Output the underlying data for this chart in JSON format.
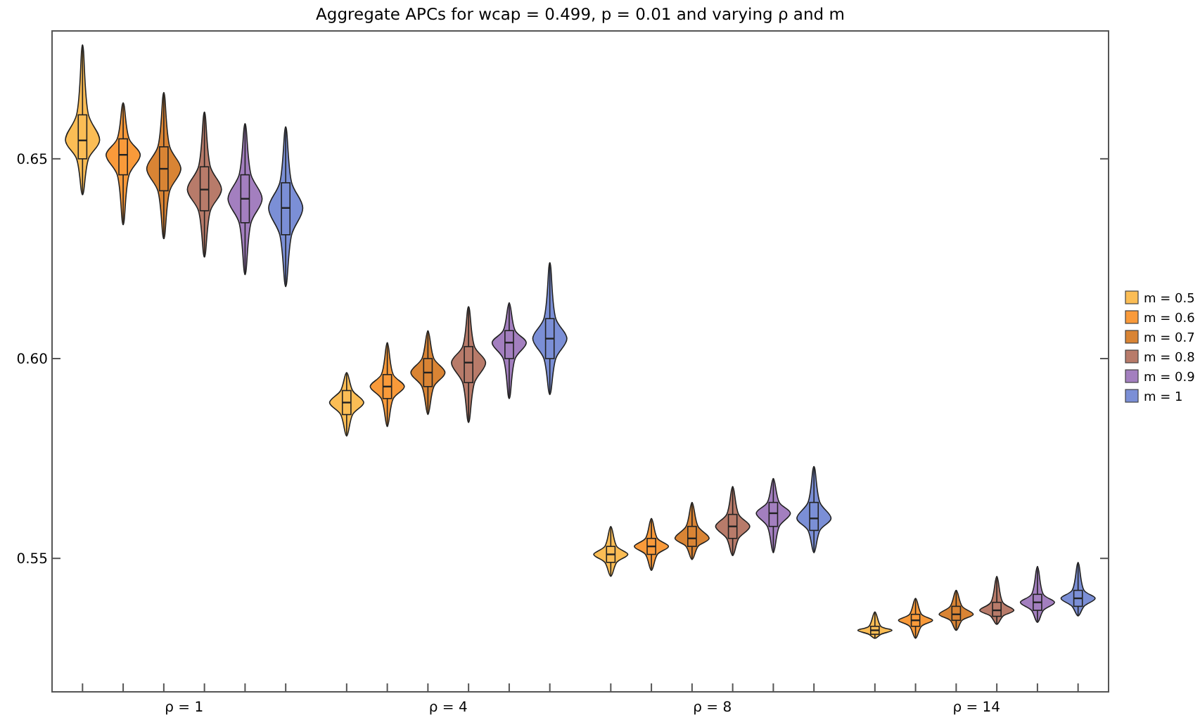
{
  "chart_data": {
    "type": "box",
    "title": "Aggregate APCs for wcap = 0.499, p = 0.01 and varying ρ and m",
    "categories": [
      "ρ = 1",
      "ρ = 4",
      "ρ = 8",
      "ρ = 14"
    ],
    "ylim": [
      0.5166,
      0.682
    ],
    "yticks": [
      {
        "value": 0.55,
        "label": "0.55"
      },
      {
        "value": 0.6,
        "label": "0.60"
      },
      {
        "value": 0.65,
        "label": "0.65"
      }
    ],
    "legend": "right",
    "grid": false,
    "series": [
      {
        "name": "m = 0.5",
        "color": "#fbbd55",
        "boxes": [
          {
            "low": 0.641,
            "q1": 0.65,
            "median": 0.6546,
            "q3": 0.661,
            "high": 0.6785
          },
          {
            "low": 0.5806,
            "q1": 0.586,
            "median": 0.589,
            "q3": 0.592,
            "high": 0.5965
          },
          {
            "low": 0.5455,
            "q1": 0.549,
            "median": 0.551,
            "q3": 0.553,
            "high": 0.558
          },
          {
            "low": 0.53,
            "q1": 0.531,
            "median": 0.532,
            "q3": 0.533,
            "high": 0.5366
          }
        ]
      },
      {
        "name": "m = 0.6",
        "color": "#f99a3a",
        "boxes": [
          {
            "low": 0.6335,
            "q1": 0.646,
            "median": 0.651,
            "q3": 0.655,
            "high": 0.664
          },
          {
            "low": 0.583,
            "q1": 0.59,
            "median": 0.593,
            "q3": 0.596,
            "high": 0.604
          },
          {
            "low": 0.547,
            "q1": 0.551,
            "median": 0.553,
            "q3": 0.555,
            "high": 0.56
          },
          {
            "low": 0.53,
            "q1": 0.533,
            "median": 0.5345,
            "q3": 0.536,
            "high": 0.54
          }
        ]
      },
      {
        "name": "m = 0.7",
        "color": "#d98434",
        "boxes": [
          {
            "low": 0.63,
            "q1": 0.642,
            "median": 0.6475,
            "q3": 0.653,
            "high": 0.6666
          },
          {
            "low": 0.586,
            "q1": 0.593,
            "median": 0.5965,
            "q3": 0.6,
            "high": 0.607
          },
          {
            "low": 0.5497,
            "q1": 0.553,
            "median": 0.555,
            "q3": 0.558,
            "high": 0.564
          },
          {
            "low": 0.532,
            "q1": 0.5345,
            "median": 0.536,
            "q3": 0.538,
            "high": 0.542
          }
        ]
      },
      {
        "name": "m = 0.8",
        "color": "#b87b6a",
        "boxes": [
          {
            "low": 0.6254,
            "q1": 0.637,
            "median": 0.6423,
            "q3": 0.648,
            "high": 0.6617
          },
          {
            "low": 0.584,
            "q1": 0.594,
            "median": 0.599,
            "q3": 0.603,
            "high": 0.613
          },
          {
            "low": 0.5507,
            "q1": 0.555,
            "median": 0.558,
            "q3": 0.561,
            "high": 0.568
          },
          {
            "low": 0.5335,
            "q1": 0.5355,
            "median": 0.537,
            "q3": 0.539,
            "high": 0.5455
          }
        ]
      },
      {
        "name": "m = 0.9",
        "color": "#a37fbf",
        "boxes": [
          {
            "low": 0.621,
            "q1": 0.634,
            "median": 0.64,
            "q3": 0.646,
            "high": 0.6588
          },
          {
            "low": 0.59,
            "q1": 0.6,
            "median": 0.604,
            "q3": 0.607,
            "high": 0.614
          },
          {
            "low": 0.5514,
            "q1": 0.558,
            "median": 0.5613,
            "q3": 0.564,
            "high": 0.57
          },
          {
            "low": 0.534,
            "q1": 0.537,
            "median": 0.539,
            "q3": 0.541,
            "high": 0.548
          }
        ]
      },
      {
        "name": "m = 1",
        "color": "#7b8fd6",
        "boxes": [
          {
            "low": 0.618,
            "q1": 0.631,
            "median": 0.6377,
            "q3": 0.644,
            "high": 0.658
          },
          {
            "low": 0.591,
            "q1": 0.6,
            "median": 0.605,
            "q3": 0.61,
            "high": 0.624
          },
          {
            "low": 0.5514,
            "q1": 0.557,
            "median": 0.56,
            "q3": 0.564,
            "high": 0.573
          },
          {
            "low": 0.5356,
            "q1": 0.538,
            "median": 0.54,
            "q3": 0.542,
            "high": 0.549
          }
        ]
      }
    ]
  }
}
